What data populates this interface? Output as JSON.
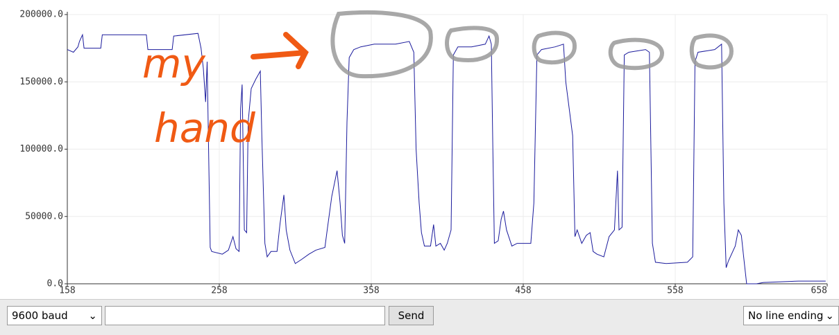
{
  "chart_data": {
    "type": "line",
    "color": "#1a1a9c",
    "x": [
      158,
      162,
      165,
      166,
      168,
      169,
      180,
      181,
      210,
      211,
      227,
      228,
      244,
      246,
      247.5,
      249,
      250,
      252,
      253,
      260,
      264,
      267,
      269,
      271,
      272,
      273,
      274.5,
      276,
      277,
      279,
      282,
      285,
      286,
      288,
      289.5,
      292,
      296,
      298,
      300.5,
      302,
      304.5,
      308,
      312,
      317,
      321.5,
      327.5,
      329,
      332,
      335.5,
      337.5,
      339,
      340.5,
      342,
      343.5,
      346.5,
      351,
      360,
      374,
      383,
      386,
      387.5,
      389.5,
      391,
      393,
      397,
      399,
      400.5,
      403.5,
      406,
      408,
      410.5,
      412,
      415,
      424,
      433,
      435.5,
      437,
      438,
      439,
      441.5,
      443.5,
      445,
      447,
      450.5,
      454,
      463,
      465,
      467,
      470,
      479,
      484.5,
      486,
      490.5,
      492,
      493.5,
      496.5,
      499.5,
      502,
      504,
      506.5,
      511,
      514.5,
      518,
      520,
      521,
      523,
      524.5,
      527.5,
      538.5,
      541,
      543,
      545,
      552,
      566,
      569.5,
      571,
      573,
      584,
      588.5,
      590,
      591.5,
      593,
      597.5,
      599.5,
      601.5,
      603,
      605,
      611.5,
      616,
      639,
      657
    ],
    "values": [
      174000,
      172000,
      176000,
      180000,
      185000,
      175000,
      175000,
      185000,
      185000,
      174000,
      174000,
      184000,
      186000,
      175000,
      160000,
      135000,
      165000,
      27000,
      24000,
      22000,
      25000,
      35000,
      26000,
      24000,
      130000,
      148000,
      40000,
      38000,
      120000,
      145000,
      152000,
      158000,
      110000,
      30000,
      20000,
      24000,
      24000,
      45000,
      66000,
      40000,
      25000,
      15000,
      18000,
      22000,
      25000,
      27000,
      40000,
      65000,
      84000,
      60000,
      36000,
      30000,
      120000,
      168000,
      174000,
      176000,
      178000,
      178000,
      180000,
      172000,
      100000,
      60000,
      38000,
      28000,
      28000,
      44000,
      28000,
      30000,
      25000,
      30000,
      40000,
      170000,
      176000,
      176000,
      178000,
      184000,
      178000,
      100000,
      30000,
      32000,
      48000,
      54000,
      40000,
      28000,
      30000,
      30000,
      60000,
      170000,
      174000,
      176000,
      178000,
      150000,
      110000,
      35000,
      40000,
      30000,
      36000,
      38000,
      24000,
      22000,
      20000,
      35000,
      40000,
      84000,
      40000,
      42000,
      170000,
      172000,
      174000,
      172000,
      30000,
      16000,
      15000,
      16000,
      20000,
      165000,
      172000,
      174000,
      178000,
      60000,
      12000,
      17000,
      28000,
      40000,
      36000,
      20000,
      0,
      0,
      1000,
      2000,
      2000
    ],
    "xlim": [
      158,
      658
    ],
    "xticks": [
      158,
      258,
      358,
      458,
      558,
      658
    ],
    "ylim": [
      0,
      200000
    ],
    "yticks": [
      {
        "value": 0,
        "label": "0.0"
      },
      {
        "value": 50000,
        "label": "50000.0"
      },
      {
        "value": 100000,
        "label": "100000.0"
      },
      {
        "value": 150000,
        "label": "150000.0"
      },
      {
        "value": 200000,
        "label": "200000.0"
      }
    ],
    "grid": true,
    "annotations": [
      "my",
      "hand"
    ]
  },
  "ui": {
    "baud": "9600 baud",
    "send": "Send",
    "line_ending": "No line ending"
  }
}
